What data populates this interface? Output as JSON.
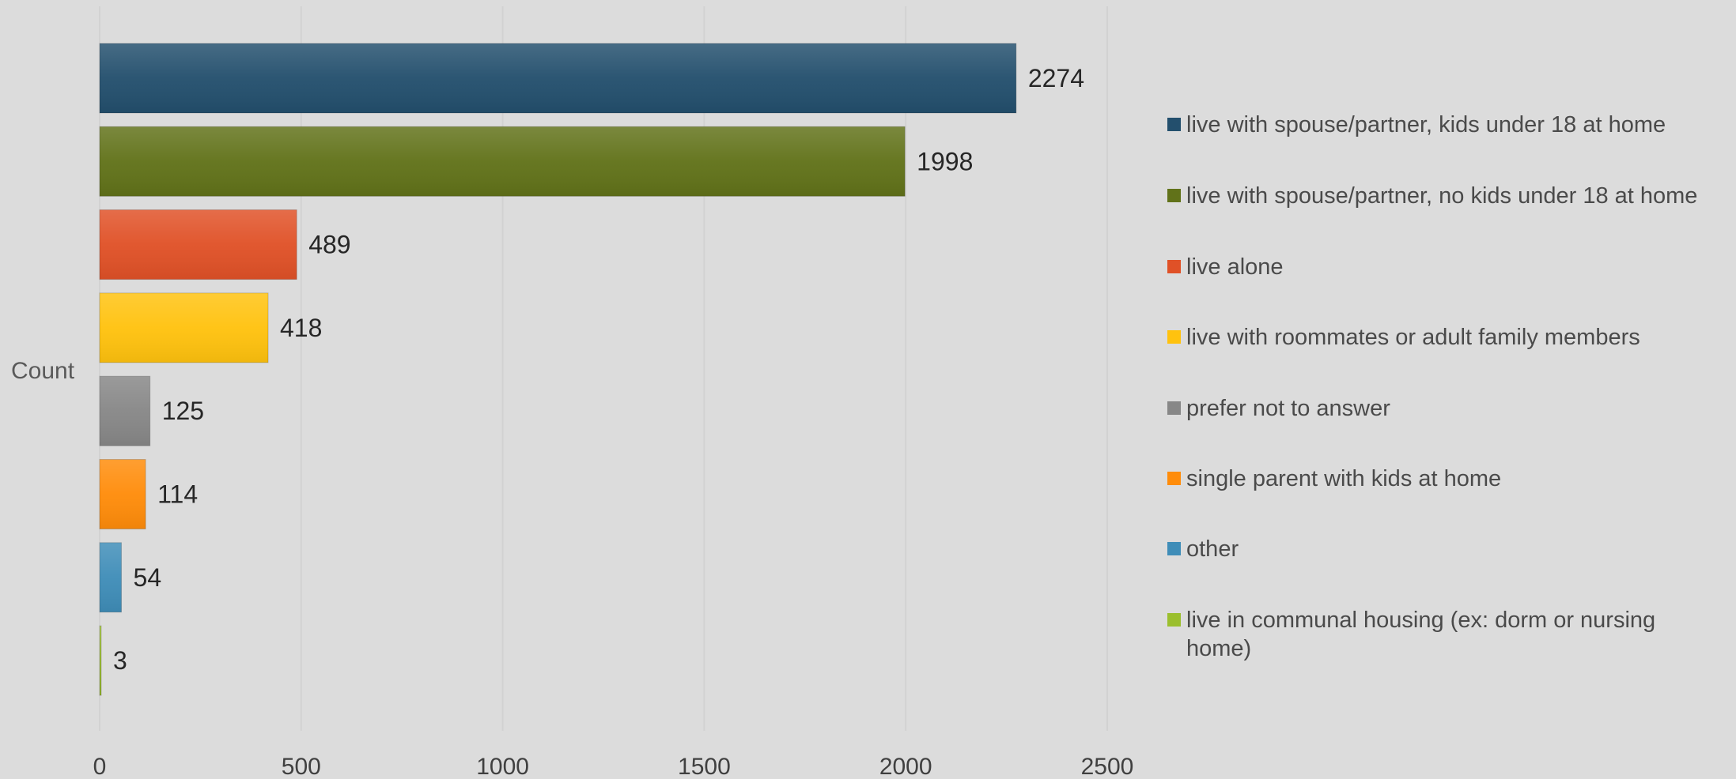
{
  "chart_data": {
    "type": "bar",
    "orientation": "horizontal",
    "title": "",
    "ylabel": "Count",
    "xlabel": "",
    "xlim": [
      0,
      2500
    ],
    "xticks": [
      0,
      500,
      1000,
      1500,
      2000,
      2500
    ],
    "grid": "vertical",
    "legend_position": "right",
    "categories": [
      "live with spouse/partner, kids under 18 at home",
      "live with spouse/partner, no kids under 18 at home",
      "live alone",
      "live with roommates or adult family members",
      "prefer not to answer",
      "single parent with kids at home",
      "other",
      "live in communal housing (ex: dorm or nursing home)"
    ],
    "values": [
      2274,
      1998,
      489,
      418,
      125,
      114,
      54,
      3
    ],
    "colors": [
      "#234f6d",
      "#617219",
      "#e05127",
      "#ffc20e",
      "#878787",
      "#ff8c0a",
      "#3f8db8",
      "#9bbf2e"
    ]
  }
}
